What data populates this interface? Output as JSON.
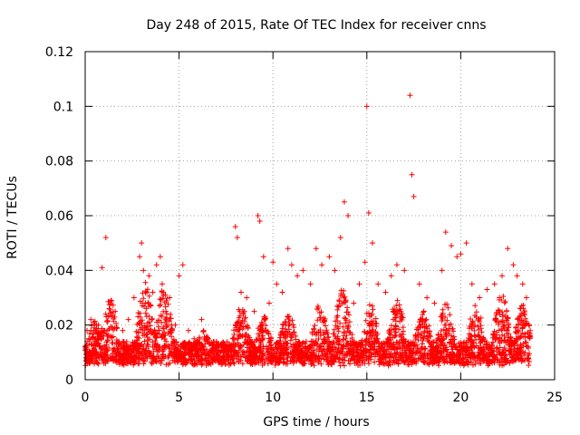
{
  "chart_data": {
    "type": "scatter",
    "title": "Day 248 of 2015, Rate Of TEC Index for receiver cnns",
    "xlabel": "GPS time / hours",
    "ylabel": "ROTI / TECUs",
    "xlim": [
      0,
      25
    ],
    "ylim": [
      0,
      0.12
    ],
    "x_ticks": [
      0,
      5,
      10,
      15,
      20,
      25
    ],
    "y_ticks": [
      0,
      0.02,
      0.04,
      0.06,
      0.08,
      0.1,
      0.12
    ],
    "x_tick_labels": [
      "0",
      "5",
      "10",
      "15",
      "20",
      "25"
    ],
    "y_tick_labels": [
      "0",
      "0.02",
      "0.04",
      "0.06",
      "0.08",
      "0.1",
      "0.12"
    ],
    "grid": true,
    "marker": "+",
    "color": "#ff0000",
    "series": [
      {
        "x": [
          0.0,
          0.1,
          0.2,
          0.3,
          0.5,
          0.7,
          0.9,
          1.1,
          1.3,
          1.6,
          1.8,
          2.0,
          2.3,
          2.6,
          2.9,
          3.0,
          3.1,
          3.2,
          3.4,
          3.6,
          3.8,
          4.0,
          4.1,
          4.3,
          4.5,
          4.8,
          5.0,
          5.2,
          5.5,
          5.8,
          6.2,
          6.6,
          7.0,
          7.4,
          7.8,
          8.0,
          8.1,
          8.3,
          8.6,
          9.0,
          9.2,
          9.3,
          9.5,
          9.8,
          10.0,
          10.2,
          10.5,
          10.8,
          11.0,
          11.3,
          11.6,
          12.0,
          12.3,
          12.6,
          13.0,
          13.3,
          13.6,
          13.8,
          14.0,
          14.3,
          14.6,
          14.9,
          15.0,
          15.1,
          15.3,
          15.6,
          16.0,
          16.3,
          16.6,
          17.0,
          17.3,
          17.4,
          17.5,
          17.8,
          18.2,
          18.6,
          19.0,
          19.2,
          19.5,
          19.8,
          20.0,
          20.3,
          20.6,
          21.0,
          21.4,
          21.8,
          22.2,
          22.5,
          22.8,
          23.0,
          23.3,
          23.5,
          23.7
        ],
        "y": [
          0.012,
          0.018,
          0.015,
          0.022,
          0.014,
          0.02,
          0.041,
          0.052,
          0.016,
          0.025,
          0.014,
          0.018,
          0.022,
          0.03,
          0.045,
          0.05,
          0.04,
          0.028,
          0.038,
          0.032,
          0.042,
          0.045,
          0.035,
          0.025,
          0.03,
          0.02,
          0.038,
          0.042,
          0.018,
          0.015,
          0.022,
          0.013,
          0.012,
          0.01,
          0.012,
          0.056,
          0.052,
          0.032,
          0.03,
          0.025,
          0.06,
          0.058,
          0.045,
          0.028,
          0.043,
          0.035,
          0.032,
          0.048,
          0.042,
          0.038,
          0.04,
          0.035,
          0.048,
          0.042,
          0.045,
          0.04,
          0.052,
          0.065,
          0.06,
          0.028,
          0.035,
          0.043,
          0.1,
          0.061,
          0.05,
          0.035,
          0.032,
          0.038,
          0.042,
          0.04,
          0.104,
          0.075,
          0.067,
          0.035,
          0.03,
          0.028,
          0.04,
          0.054,
          0.049,
          0.045,
          0.046,
          0.05,
          0.035,
          0.03,
          0.033,
          0.035,
          0.038,
          0.048,
          0.042,
          0.038,
          0.035,
          0.03,
          0.018
        ]
      },
      {
        "x": [
          0.1,
          0.4,
          0.8,
          1.2,
          1.5,
          2.1,
          2.5,
          2.8,
          3.3,
          3.7,
          4.2,
          4.6,
          5.1,
          5.6,
          6.0,
          6.4,
          6.8,
          7.2,
          7.6,
          8.2,
          8.5,
          8.8,
          9.4,
          9.7,
          10.1,
          10.4,
          10.7,
          11.1,
          11.5,
          11.9,
          12.2,
          12.5,
          12.9,
          13.2,
          13.5,
          13.9,
          14.2,
          14.5,
          14.8,
          15.2,
          15.5,
          15.9,
          16.2,
          16.5,
          16.9,
          17.2,
          17.7,
          18.0,
          18.4,
          18.8,
          19.1,
          19.4,
          19.7,
          20.1,
          20.5,
          20.9,
          21.2,
          21.6,
          22.0,
          22.4,
          22.7,
          23.1,
          23.4,
          23.6
        ],
        "y": [
          0.008,
          0.01,
          0.012,
          0.009,
          0.011,
          0.007,
          0.01,
          0.012,
          0.013,
          0.012,
          0.011,
          0.013,
          0.01,
          0.009,
          0.011,
          0.008,
          0.009,
          0.01,
          0.008,
          0.012,
          0.01,
          0.011,
          0.009,
          0.01,
          0.008,
          0.011,
          0.01,
          0.012,
          0.009,
          0.011,
          0.01,
          0.012,
          0.009,
          0.011,
          0.013,
          0.012,
          0.01,
          0.011,
          0.009,
          0.012,
          0.01,
          0.011,
          0.009,
          0.012,
          0.01,
          0.013,
          0.011,
          0.009,
          0.012,
          0.01,
          0.011,
          0.009,
          0.012,
          0.01,
          0.011,
          0.009,
          0.012,
          0.01,
          0.011,
          0.009,
          0.012,
          0.008,
          0.009,
          0.008
        ]
      }
    ]
  }
}
